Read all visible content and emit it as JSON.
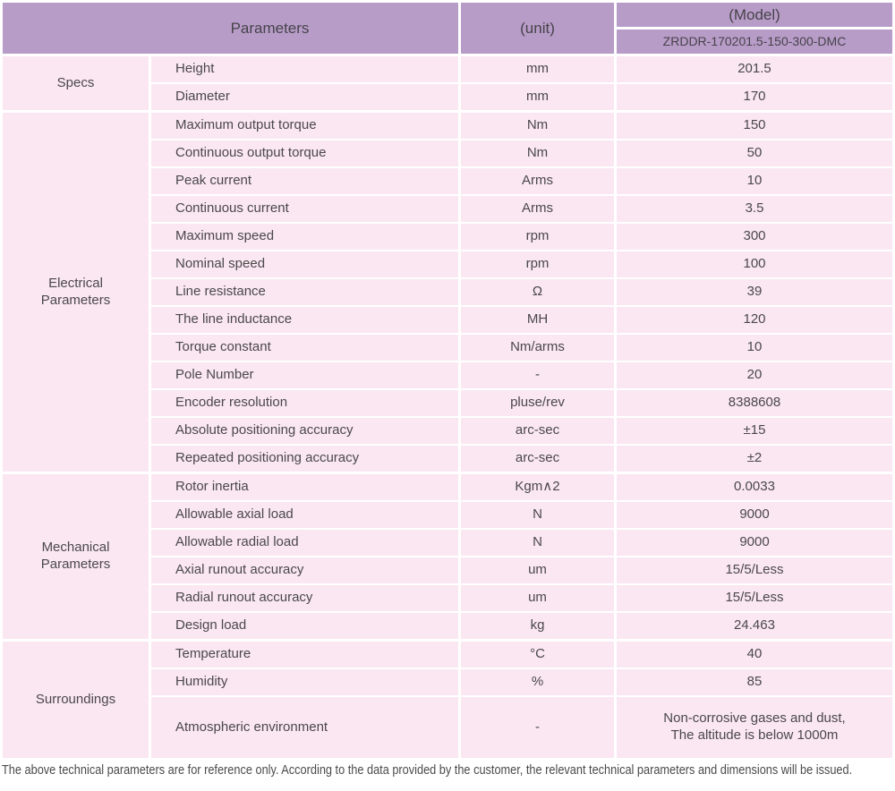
{
  "header": {
    "parameters_label": "Parameters",
    "unit_label": "(unit)",
    "model_label": "(Model)",
    "model_number": "ZRDDR-170201.5-150-300-DMC"
  },
  "sections": [
    {
      "category": "Specs",
      "rows": [
        {
          "name": "Height",
          "unit": "mm",
          "value": "201.5"
        },
        {
          "name": "Diameter",
          "unit": "mm",
          "value": "170"
        }
      ]
    },
    {
      "category": "Electrical\nParameters",
      "rows": [
        {
          "name": "Maximum output torque",
          "unit": "Nm",
          "value": "150"
        },
        {
          "name": "Continuous output torque",
          "unit": "Nm",
          "value": "50"
        },
        {
          "name": "Peak current",
          "unit": "Arms",
          "value": "10"
        },
        {
          "name": "Continuous current",
          "unit": "Arms",
          "value": "3.5"
        },
        {
          "name": "Maximum speed",
          "unit": "rpm",
          "value": "300"
        },
        {
          "name": "Nominal speed",
          "unit": "rpm",
          "value": "100"
        },
        {
          "name": "Line resistance",
          "unit": "Ω",
          "value": "39"
        },
        {
          "name": "The line inductance",
          "unit": "MH",
          "value": "120"
        },
        {
          "name": "Torque constant",
          "unit": "Nm/arms",
          "value": "10"
        },
        {
          "name": "Pole Number",
          "unit": "-",
          "value": "20"
        },
        {
          "name": "Encoder resolution",
          "unit": "pluse/rev",
          "value": "8388608"
        },
        {
          "name": "Absolute positioning accuracy",
          "unit": "arc-sec",
          "value": "±15"
        },
        {
          "name": "Repeated positioning accuracy",
          "unit": "arc-sec",
          "value": "±2"
        }
      ]
    },
    {
      "category": "Mechanical\nParameters",
      "rows": [
        {
          "name": "Rotor inertia",
          "unit": "Kgm∧2",
          "value": "0.0033"
        },
        {
          "name": "Allowable axial load",
          "unit": "N",
          "value": "9000"
        },
        {
          "name": "Allowable radial load",
          "unit": "N",
          "value": "9000"
        },
        {
          "name": "Axial runout accuracy",
          "unit": "um",
          "value": "15/5/Less"
        },
        {
          "name": "Radial runout accuracy",
          "unit": "um",
          "value": "15/5/Less"
        },
        {
          "name": "Design load",
          "unit": "kg",
          "value": "24.463"
        }
      ]
    },
    {
      "category": "Surroundings",
      "rows": [
        {
          "name": "Temperature",
          "unit": "°C",
          "value": "40"
        },
        {
          "name": "Humidity",
          "unit": "%",
          "value": "85"
        },
        {
          "name": "Atmospheric environment",
          "unit": "-",
          "value": "Non-corrosive gases and dust,\nThe altitude is below 1000m"
        }
      ]
    }
  ],
  "footer_note": "The above technical parameters are for reference only. According to the data provided by the customer, the relevant technical parameters and dimensions will be issued.",
  "colors": {
    "header_bg": "#b89cc8",
    "row_bg": "#fae7f1",
    "grid_line": "#ffffff",
    "text_color": "#4b484a"
  }
}
